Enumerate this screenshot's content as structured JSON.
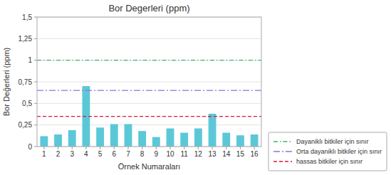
{
  "chart_data": {
    "type": "bar",
    "title": "Bor Degerleri (ppm)",
    "xlabel": "Örnek Numaraları",
    "ylabel": "Bor Değerleri (ppm)",
    "categories": [
      1,
      2,
      3,
      4,
      5,
      6,
      7,
      8,
      9,
      10,
      11,
      12,
      13,
      14,
      15,
      16
    ],
    "values": [
      0.12,
      0.14,
      0.19,
      0.7,
      0.22,
      0.26,
      0.26,
      0.18,
      0.11,
      0.21,
      0.16,
      0.21,
      0.38,
      0.16,
      0.13,
      0.14
    ],
    "color": "#5bc8d8",
    "ylim": [
      0,
      1.5
    ],
    "yticks": [
      0,
      {
        "value": 0.25,
        "label": "0,25"
      },
      {
        "value": 0.5,
        "label": "0,5"
      },
      {
        "value": 0.75,
        "label": "0,75"
      },
      1,
      {
        "value": 1.25,
        "label": "1,25"
      },
      {
        "value": 1.5,
        "label": "1,5"
      }
    ],
    "grid": true,
    "legend": "lower right",
    "reference_lines": [
      {
        "name": "Dayaniklı bitkiler için sınır",
        "value": 1.0,
        "color": "#3cb371",
        "line_style": "dashdot"
      },
      {
        "name": "Orta dayaniklı bitkiler için sınır",
        "value": 0.65,
        "color": "#9370db",
        "line_style": "longdashdot"
      },
      {
        "name": "hassas bitkiler için sınır",
        "value": 0.35,
        "color": "#dc143c",
        "line_style": "dashed"
      }
    ]
  }
}
